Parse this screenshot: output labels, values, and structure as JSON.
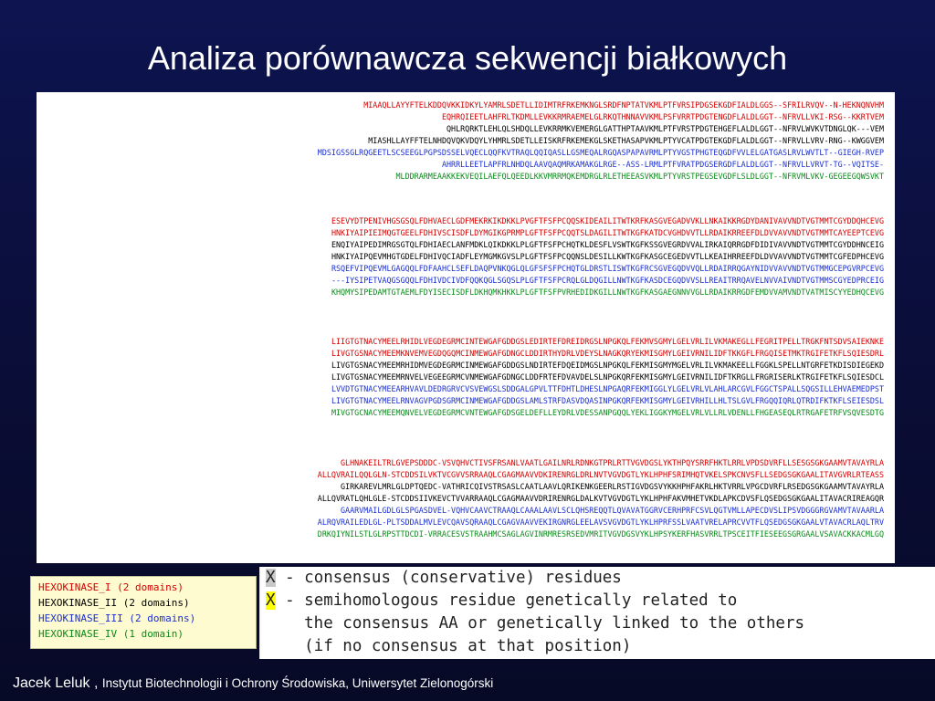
{
  "slide": {
    "title": "Analiza porównawcza sekwencji białkowych"
  },
  "alignment": {
    "blocks": [
      [
        {
          "seq": "MIAAQLLAYYFTELKDDQVKKIDKYLYAMRLSDETLLIDIMTRFRKEMKNGLSRDFNPTATVKMLPTFVRSIPDGSEKGDFIALDLGGS--SFRILRVQV--N-HEKNQNVHM",
          "color": "#d40000"
        },
        {
          "seq": "EQHRQIEETLAHFRLTKDMLLEVKKRMRAEMELGLRKQTHNNAVVKMLPSFVRRTPDGTENGDFLALDLGGT--NFRVLLVKI-RSG--KKRTVEM",
          "color": "#d40000"
        },
        {
          "seq": "QHLRQRKTLEHLQLSHDQLLEVKRRMKVEMERGLGATTHPTAAVKMLPTFVRSTPDGTEHGEFLALDLGGT--NFRVLWVKVTDNGLQK---VEM",
          "color": "#000000"
        },
        {
          "seq": "MIASHLLAYFFTELNHDQVQKVDQYLYHMRLSDETLLEISKRFRKEMEKGLSKETHASAPVKMLPTYVCATPDGTEKGDFLALDLGGT--NFRVLLVRV-RNG--KWGGVEM",
          "color": "#000000"
        },
        {
          "seq": "MDSIGSSGLRQGEETLSCSEEGLPGPSDSSELVQECLQQFKVTRAQLQQIQASLLGSMEQALRGQASPAPAVRMLPTYVGSTPHGTEQGDFVVLELGATGASLRVLWVTLT--GIEGH-RVEP",
          "color": "#1b2fd0"
        },
        {
          "seq": "AHRRLLEETLAPFRLNHDQLAAVQAQMRKAMAKGLRGE--ASS-LRMLPTFVRATPDGSERGDFLALDLGGT--NFRVLLVRVT-TG--VQITSE-",
          "color": "#1b2fd0"
        },
        {
          "seq": "MLDDRARMEAAKKEKVEQILAEFQLQEEDLKKVMRRMQKEMDRGLRLETHEEASVKMLPTYVRSTPEGSEVGDFLSLDLGGT--NFRVMLVKV-GEGEEGQWSVKT",
          "color": "#0a8a1a"
        }
      ],
      [
        {
          "seq": "ESEVYDTPENIVHGSGSQLFDHVAECLGDFMEKRKIKDKKLPVGFTFSFPCQQSKIDEAILITWTKRFKASGVEGADVVKLLNKAIKKRGDYDANIVAVVNDTVGTMMTCGYDDQHCEVG",
          "color": "#d40000"
        },
        {
          "seq": "HNKIYAIPIEIMQGTGEELFDHIVSCISDFLDYMGIKGPRMPLGFTFSFPCQQTSLDAGILITWTKGFKATDCVGHDVVTLLRDAIKRREEFDLDVVAVVNDTVGTMMTCAYEEPTCEVG",
          "color": "#d40000"
        },
        {
          "seq": "ENQIYAIPEDIMRGSGTQLFDHIAECLANFMDKLQIKDKKLPLGFTFSFPCHQTKLDESFLVSWTKGFKSSGVEGRDVVALIRKAIQRRGDFDIDIVAVVNDTVGTMMTCGYDDHNCEIG",
          "color": "#000000"
        },
        {
          "seq": "HNKIYAIPQEVMHGTGDELFDHIVQCIADFLEYMGMKGVSLPLGFTFSFPCQQNSLDESILLKWTKGFKASGCEGEDVVTLLKEAIHRREEFDLDVVAVVNDTVGTMMTCGFEDPHCEVG",
          "color": "#000000"
        },
        {
          "seq": "RSQEFVIPQEVMLGAGQQLFDFAAHCLSEFLDAQPVNKQGLQLGFSFSFPCHQTGLDRSTLISWTKGFRCSGVEGQDVVQLLRDAIRRQGAYNIDVVAVVNDTVGTMMGCEPGVRPCEVG",
          "color": "#1b2fd0"
        },
        {
          "seq": "---IYSIPETVAQGSGQQLFDHIVDCIVDFQQKQGLSGQSLPLGFTFSFPCRQLGLDQGILLNWTKGFKASDCEGQDVVSLLREAITRRQAVELNVVAIVNDTVGTMMSCGYEDPRCEIG",
          "color": "#1b2fd0"
        },
        {
          "seq": "KHQMYSIPEDAMTGTAEMLFDYISECISDFLDKHQMKHKKLPLGFTFSFPVRHEDIDKGILLNWTKGFKASGAEGNNVVGLLRDAIKRRGDFEMDVVAMVNDTVATMISCYYEDHQCEVG",
          "color": "#0a8a1a"
        }
      ],
      [
        {
          "seq": "LIIGTGTNACYMEELRHIDLVEGDEGRMCINTEWGAFGDDGSLEDIRTEFDREIDRGSLNPGKQLFEKMVSGMYLGELVRLILVKMAKEGLLFEGRITPELLTRGKFNTSDVSAIEKNKE",
          "color": "#d40000"
        },
        {
          "seq": "LIVGTGSNACYMEEMKNVEMVEGDQGQMCINMEWGAFGDNGCLDDIRTHYDRLVDEYSLNAGKQRYEKMISGMYLGEIVRNILIDFTKKGFLFRGQISETMKTRGIFETKFLSQIESDRL",
          "color": "#d40000"
        },
        {
          "seq": "LIVGTGSNACYMEEMRHIDMVEGDEGRMCINMEWGAFGDDGSLNDIRTEFDQEIDMGSLNPGKQLFEKMISGMYMGELVRLILVKMAKEELLFGGKLSPELLNTGRFETKDISDIEGEKD",
          "color": "#000000"
        },
        {
          "seq": "LIVGTGSNACYMEEMRNVELVEGEEGRMCVNMEWGAFGDNGCLDDFRTEFDVAVDELSLNPGKQRFEKMISGMYLGEIVRNILIDFTKRGLLFRGRISERLKTRGIFETKFLSQIESDCL",
          "color": "#000000"
        },
        {
          "seq": "LVVDTGTNACYMEEARHVAVLDEDRGRVCVSVEWGSLSDDGALGPVLTTFDHTLDHESLNPGAQRFEKMIGGLYLGELVRLVLAHLARCGVLFGGCTSPALLSQGSILLEHVAEMEDPST",
          "color": "#1b2fd0"
        },
        {
          "seq": "LIVGTGTNACYMEELRNVAGVPGDSGRMCINMEWGAFGDDGSLAMLSTRFDASVDQASINPGKQRFEKMISGMYLGEIVRHILLHLTSLGVLFRGQQIQRLQTRDIFKTKFLSEIESDSL",
          "color": "#1b2fd0"
        },
        {
          "seq": "MIVGTGCNACYMEEMQNVELVEGDEGRMCVNTEWGAFGDSGELDEFLLEYDRLVDESSANPGQQLYEKLIGGKYMGELVRLVLLRLVDENLLFHGEASEQLRTRGAFETRFVSQVESDTG",
          "color": "#0a8a1a"
        }
      ],
      [
        {
          "seq": "GLHNAKEILTRLGVEPSDDDC-VSVQHVCTIVSFRSANLVAATLGAILNRLRDNKGTPRLRTTVGVDGSLYKTHPQYSRRFHKTLRRLVPDSDVRFLLSESGSGKGAAMVTAVAYRLA",
          "color": "#d40000"
        },
        {
          "seq": "ALLQVRAILQQLGLN-STCDDSILVKTVCGVVSRRAAQLCGAGMAAVVDKIRENRGLDRLNVTVGVDGTLYKLHPHFSRIMHQTVKELSPKCNVSFLLSEDGSGKGAALITAVGVRLRTEASS",
          "color": "#d40000"
        },
        {
          "seq": "GIRKAREVLMRLGLDPTQEDC-VATHRICQIVSTRSASLCAATLAAVLQRIKENKGEERLRSTIGVDGSVYKKHPHFAKRLHKTVRRLVPGCDVRFLRSEDGSGKGAAMVTAVAYRLA",
          "color": "#000000"
        },
        {
          "seq": "ALLQVRATLQHLGLE-STCDDSIIVKEVCTVVARRAAQLCGAGMAAVVDRIRENRGLDALKVTVGVDGTLYKLHPHFAKVMHETVKDLAPKCDVSFLQSEDGSGKGAALITAVACRIREAGQR",
          "color": "#000000"
        },
        {
          "seq": "GAARVMAILGDLGLSPGASDVEL-VQHVCAAVCTRAAQLCAAALAAVLSCLQHSREQQTLQVAVATGGRVCERHPRFCSVLQGTVMLLAPECDVSLIPSVDGGGRGVAMVTAVAARLA",
          "color": "#1b2fd0"
        },
        {
          "seq": "ALRQVRAILEDLGL-PLTSDDALMVLEVCQAVSQRAAQLCGAGVAAVVEKIRGNRGLEELAVSVGVDGTLYKLHPRFSSLVAATVRELAPRCVVTFLQSEDGSGKGAALVTAVACRLAQLTRV",
          "color": "#1b2fd0"
        },
        {
          "seq": "DRKQIYNILSTLGLRPSTTDCDI-VRRACESVSTRAAHMCSAGLAGVINRMRESRSEDVMRITVGVDGSVYKLHPSYKERFHASVRRLTPSCEITFIESEEGSGRGAALVSAVACKKACMLGQ",
          "color": "#0a8a1a"
        }
      ]
    ]
  },
  "legend": {
    "items": [
      {
        "label": "HEXOKINASE_I (2 domains)",
        "color": "#d40000"
      },
      {
        "label": "HEXOKINASE_II (2 domains)",
        "color": "#000000"
      },
      {
        "label": "HEXOKINASE_III (2 domains)",
        "color": "#1b2fd0"
      },
      {
        "label": "HEXOKINASE_IV (1 domain)",
        "color": "#0a8a1a"
      }
    ]
  },
  "key": {
    "gray_marker": "X",
    "gray_text": " - consensus (conservative) residues",
    "yellow_marker": "X",
    "yellow_text": " - semihomologous residue genetically related to",
    "yellow_text_2": "    the consensus AA or genetically linked to the others",
    "yellow_text_3": "    (if no consensus at that position)",
    "gray_color": "#c9c9c9",
    "yellow_color": "#ffff00"
  },
  "footer": {
    "author": "Jacek Leluk , ",
    "institution": "Instytut Biotechnologii i Ochrony Środowiska, Uniwersytet Zielonogórski"
  }
}
